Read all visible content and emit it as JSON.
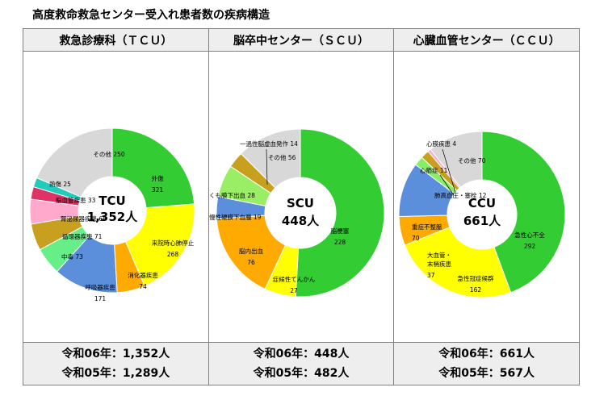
{
  "page_title": "高度救命救急センター受入れ患者数の疾病構造",
  "chart_data": [
    {
      "type": "pie",
      "header": "救急診療科（ＴＣＵ）",
      "center_name": "TCU",
      "center_total": "1,352人",
      "categories": [
        "外傷",
        "来院時心肺停止",
        "消化器疾患",
        "呼吸器疾患",
        "中毒",
        "循環器疾患",
        "腎泌尿器疾患",
        "脳血管疾患",
        "熱傷",
        "その他"
      ],
      "values": [
        321,
        268,
        74,
        171,
        73,
        71,
        66,
        33,
        25,
        250
      ],
      "colors": [
        "#33cc33",
        "#ffff00",
        "#ffaa00",
        "#5b8fdc",
        "#66ee88",
        "#c8a020",
        "#ffaacc",
        "#dd3366",
        "#22ccbb",
        "#d8d8d8"
      ],
      "footer": [
        "令和06年：1,352人",
        "令和05年：1,289人"
      ]
    },
    {
      "type": "pie",
      "header": "脳卒中センター（ＳＣＵ）",
      "center_name": "SCU",
      "center_total": "448人",
      "categories": [
        "脳梗塞",
        "症候性てんかん",
        "脳内出血",
        "慢性硬膜下血腫",
        "くも膜下出血",
        "一過性脳虚血発作",
        "その他"
      ],
      "values": [
        228,
        27,
        76,
        19,
        28,
        14,
        56
      ],
      "colors": [
        "#33cc33",
        "#ffff00",
        "#ffaa00",
        "#5b8fdc",
        "#99ee66",
        "#c8a020",
        "#d8d8d8"
      ],
      "footer": [
        "令和06年：448人",
        "令和05年：482人"
      ]
    },
    {
      "type": "pie",
      "header": "心臓血管センター（ＣＣＵ）",
      "center_name": "CCU",
      "center_total": "661人",
      "categories": [
        "急性心不全",
        "急性冠症候群",
        "大血管・末梢疾患",
        "重症不整脈",
        "肺高血圧・塞栓",
        "心筋症",
        "心膜疾患",
        "その他"
      ],
      "label_lines": [
        [
          "急性心不全"
        ],
        [
          "急性冠症候群"
        ],
        [
          "大血管・",
          "末梢疾患"
        ],
        [
          "重症不整脈"
        ],
        [
          "肺高血圧・塞栓"
        ],
        [
          "心筋症"
        ],
        [
          "心膜疾患"
        ],
        [
          "その他"
        ]
      ],
      "values": [
        292,
        162,
        37,
        70,
        12,
        11,
        4,
        70
      ],
      "colors": [
        "#33cc33",
        "#ffff00",
        "#ffaa00",
        "#5b8fdc",
        "#88ee66",
        "#c8a020",
        "#ffaacc",
        "#d8d8d8"
      ],
      "footer": [
        "令和06年：661人",
        "令和05年：567人"
      ]
    }
  ]
}
